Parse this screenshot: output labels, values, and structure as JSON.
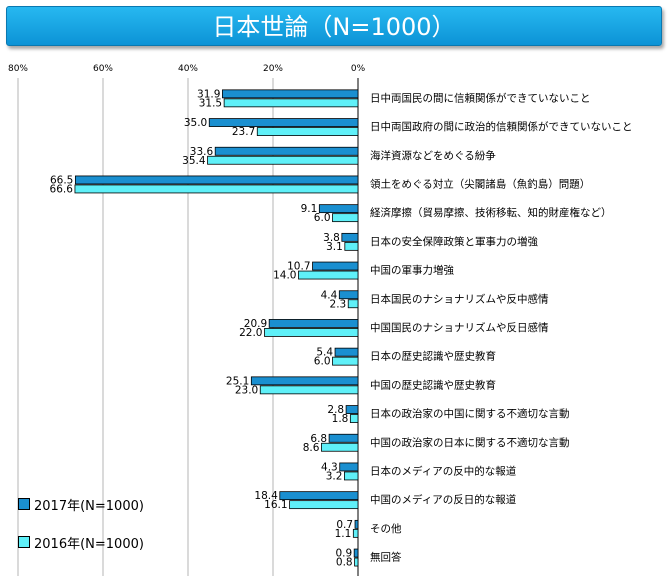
{
  "title": "日本世論（N=1000）",
  "chart_data": {
    "type": "bar",
    "orientation": "horizontal",
    "x_axis_position": "top",
    "x_direction": "reversed",
    "xlim": [
      0,
      80
    ],
    "ticks": [
      80,
      60,
      40,
      20,
      0
    ],
    "tick_labels": [
      "80%",
      "60%",
      "40%",
      "20%",
      "0%"
    ],
    "grid": true,
    "legend_position": "bottom-left",
    "categories": [
      "日中両国民の間に信頼関係ができていないこと",
      "日中両国政府の間に政治的信頼関係ができていないこと",
      "海洋資源などをめぐる紛争",
      "領土をめぐる対立（尖閣諸島（魚釣島）問題）",
      "経済摩擦（貿易摩擦、技術移転、知的財産権など）",
      "日本の安全保障政策と軍事力の増強",
      "中国の軍事力増強",
      "日本国民のナショナリズムや反中感情",
      "中国国民のナショナリズムや反日感情",
      "日本の歴史認識や歴史教育",
      "中国の歴史認識や歴史教育",
      "日本の政治家の中国に関する不適切な言動",
      "中国の政治家の日本に関する不適切な言動",
      "日本のメディアの反中的な報道",
      "中国のメディアの反日的な報道",
      "その他",
      "無回答"
    ],
    "series": [
      {
        "name": "2017年(N=1000)",
        "color": "#1a8fd0",
        "values": [
          31.9,
          35.0,
          33.6,
          66.5,
          9.1,
          3.8,
          10.7,
          4.4,
          20.9,
          5.4,
          25.1,
          2.8,
          6.8,
          4.3,
          18.4,
          0.7,
          0.9
        ],
        "labels": [
          "31.9",
          "35.0",
          "33.6",
          "66.5",
          "9.1",
          "3.8",
          "10.7",
          "4.4",
          "20.9",
          "5.4",
          "25.1",
          "2.8",
          "6.8",
          "4.3",
          "18.4",
          "0.7",
          "0.9"
        ]
      },
      {
        "name": "2016年(N=1000)",
        "color": "#5ff0f8",
        "values": [
          31.5,
          23.7,
          35.4,
          66.6,
          6.0,
          3.1,
          14.0,
          2.3,
          22.0,
          6.0,
          23.0,
          1.8,
          8.6,
          3.2,
          16.1,
          1.1,
          0.8
        ],
        "labels": [
          "31.5",
          "23.7",
          "35.4",
          "66.6",
          "6.0",
          "3.1",
          "14.0",
          "2.3",
          "22.0",
          "6.0",
          "23.0",
          "1.8",
          "8.6",
          "3.2",
          "16.1",
          "1.1",
          "0.8"
        ]
      }
    ]
  }
}
